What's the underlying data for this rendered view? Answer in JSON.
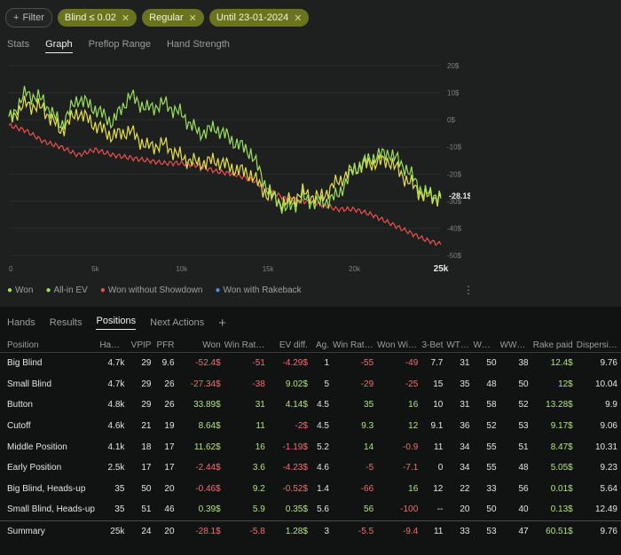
{
  "filter": {
    "button_label": "Filter",
    "chips": [
      "Blind ≤ 0.02",
      "Regular",
      "Until 23-01-2024"
    ]
  },
  "graph_tabs": [
    "Stats",
    "Graph",
    "Preflop Range",
    "Hand Strength"
  ],
  "chart_data": {
    "type": "line",
    "x_ticks": [
      "0",
      "5k",
      "10k",
      "15k",
      "20k",
      "25k"
    ],
    "y_ticks": [
      "20$",
      "10$",
      "0$",
      "-10$",
      "-20$",
      "-30$",
      "-40$",
      "-50$"
    ],
    "xlim": [
      0,
      25000
    ],
    "ylim": [
      -50,
      20
    ],
    "end_value_label": "-28.1$",
    "colors": {
      "Won": "#9be05c",
      "All-in EV": "#e6e04a",
      "Won without Showdown": "#e85050",
      "Won with Rakeback": "#4a8fd8"
    },
    "series": [
      {
        "name": "Won",
        "color": "#9be05c",
        "x": [
          0,
          1000,
          2000,
          3000,
          4000,
          5000,
          6000,
          7000,
          8000,
          9000,
          10000,
          11000,
          12000,
          13000,
          14000,
          15000,
          16000,
          17000,
          18000,
          19000,
          20000,
          21000,
          22000,
          23000,
          24000,
          25000
        ],
        "y": [
          0,
          10,
          7,
          -2,
          8,
          4,
          -1,
          9,
          4,
          6,
          2,
          -5,
          -3,
          -8,
          -12,
          -26,
          -33,
          -29,
          -31,
          -28,
          -18,
          -14,
          -12,
          -18,
          -27,
          -28.1
        ]
      },
      {
        "name": "All-in EV",
        "color": "#e6e04a",
        "x": [
          0,
          1000,
          2000,
          3000,
          4000,
          5000,
          6000,
          7000,
          8000,
          9000,
          10000,
          11000,
          12000,
          13000,
          14000,
          15000,
          16000,
          17000,
          18000,
          19000,
          20000,
          21000,
          22000,
          23000,
          24000,
          25000
        ],
        "y": [
          0,
          6,
          4,
          -4,
          3,
          -2,
          -6,
          -4,
          -10,
          -9,
          -14,
          -16,
          -15,
          -18,
          -20,
          -28,
          -31,
          -27,
          -29,
          -23,
          -18,
          -16,
          -15,
          -22,
          -28,
          -29
        ]
      },
      {
        "name": "Won without Showdown",
        "color": "#e85050",
        "x": [
          0,
          1000,
          2000,
          3000,
          4000,
          5000,
          6000,
          7000,
          8000,
          9000,
          10000,
          11000,
          12000,
          13000,
          14000,
          15000,
          16000,
          17000,
          18000,
          19000,
          20000,
          21000,
          22000,
          23000,
          24000,
          25000
        ],
        "y": [
          -2,
          -4,
          -8,
          -10,
          -13,
          -11,
          -13,
          -14,
          -15,
          -16,
          -16,
          -17,
          -19,
          -20,
          -22,
          -26,
          -29,
          -30,
          -31,
          -33,
          -33,
          -35,
          -38,
          -41,
          -44,
          -46
        ]
      }
    ]
  },
  "legend": [
    "Won",
    "All-in EV",
    "Won without Showdown",
    "Won with Rakeback"
  ],
  "bottom_tabs": [
    "Hands",
    "Results",
    "Positions",
    "Next Actions"
  ],
  "table": {
    "headers": [
      "Position",
      "Hands",
      "VPIP",
      "PFR",
      "Won",
      "Win Rate ...",
      "EV diff.",
      "Ag.",
      "Win Rate, ...",
      "Won With...",
      "3-Bet",
      "WTSD",
      "W%SD",
      "WWSF%",
      "Rake paid",
      "Dispersio..."
    ],
    "rows": [
      [
        "Big Blind",
        "4.7k",
        "29",
        "9.6",
        "-52.4$",
        "-51",
        "-4.29$",
        "1",
        "-55",
        "-49",
        "7.7",
        "31",
        "50",
        "38",
        "12.4$",
        "9.76"
      ],
      [
        "Small Blind",
        "4.7k",
        "29",
        "26",
        "-27.34$",
        "-38",
        "9.02$",
        "5",
        "-29",
        "-25",
        "15",
        "35",
        "48",
        "50",
        "12$",
        "10.04"
      ],
      [
        "Button",
        "4.8k",
        "29",
        "26",
        "33.89$",
        "31",
        "4.14$",
        "4.5",
        "35",
        "16",
        "10",
        "31",
        "58",
        "52",
        "13.28$",
        "9.9"
      ],
      [
        "Cutoff",
        "4.6k",
        "21",
        "19",
        "8.64$",
        "11",
        "-2$",
        "4.5",
        "9.3",
        "12",
        "9.1",
        "36",
        "52",
        "53",
        "9.17$",
        "9.06"
      ],
      [
        "Middle Position",
        "4.1k",
        "18",
        "17",
        "11.62$",
        "16",
        "-1.19$",
        "5.2",
        "14",
        "-0.9",
        "11",
        "34",
        "55",
        "51",
        "8.47$",
        "10.31"
      ],
      [
        "Early Position",
        "2.5k",
        "17",
        "17",
        "-2.44$",
        "3.6",
        "-4.23$",
        "4.6",
        "-5",
        "-7.1",
        "0",
        "34",
        "55",
        "48",
        "5.05$",
        "9.23"
      ],
      [
        "Big Blind, Heads-up",
        "35",
        "50",
        "20",
        "-0.46$",
        "9.2",
        "-0.52$",
        "1.4",
        "-66",
        "16",
        "12",
        "22",
        "33",
        "56",
        "0.01$",
        "5.64"
      ],
      [
        "Small Blind, Heads-up",
        "35",
        "51",
        "46",
        "0.39$",
        "5.9",
        "0.35$",
        "5.6",
        "56",
        "-100",
        "--",
        "20",
        "50",
        "40",
        "0.13$",
        "12.49"
      ]
    ],
    "summary": [
      "Summary",
      "25k",
      "24",
      "20",
      "-28.1$",
      "-5.8",
      "1.28$",
      "3",
      "-5.5",
      "-9.4",
      "11",
      "33",
      "53",
      "47",
      "60.51$",
      "9.76"
    ]
  }
}
